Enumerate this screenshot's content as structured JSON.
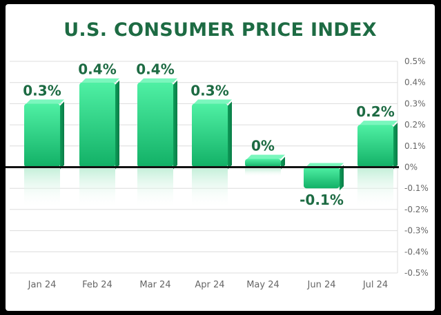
{
  "title": "U.S. CONSUMER PRICE INDEX",
  "chart_data": {
    "type": "bar",
    "title": "U.S. CONSUMER PRICE INDEX",
    "categories": [
      "Jan 24",
      "Feb 24",
      "Mar 24",
      "Apr 24",
      "May 24",
      "Jun 24",
      "Jul 24"
    ],
    "values": [
      0.3,
      0.4,
      0.4,
      0.3,
      0,
      -0.1,
      0.2
    ],
    "data_labels": [
      "0.3%",
      "0.4%",
      "0.4%",
      "0.3%",
      "0%",
      "-0.1%",
      "0.2%"
    ],
    "y_ticks": [
      "0.5%",
      "0.4%",
      "0.3%",
      "0.2%",
      "0.1%",
      "0%",
      "-0.1%",
      "-0.2%",
      "-0.3%",
      "-0.4%",
      "-0.5%"
    ],
    "ylim": [
      -0.5,
      0.5
    ],
    "y_axis_position": "right",
    "grid": true,
    "colors": {
      "bar_top": "#4ff0a4",
      "bar_bottom": "#12b066",
      "label": "#1d6b43",
      "grid": "#dcdcdc",
      "zero_line": "#111111",
      "tick_text": "#666666"
    }
  }
}
